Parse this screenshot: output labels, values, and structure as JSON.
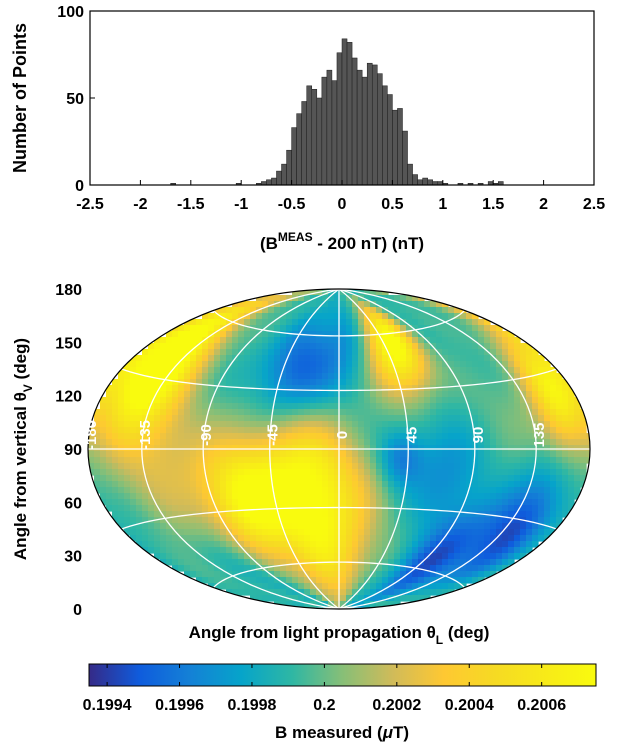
{
  "colors": {
    "bar_fill": "#555555",
    "bar_stroke": "#1a1a1a",
    "grid": "#ffffff",
    "parula_low": "#352a87",
    "parula_mid": "#2ca5c2",
    "parula_high": "#f9fb0e"
  },
  "chart_data": [
    {
      "type": "bar",
      "name": "histogram",
      "xlabel_base": "(B",
      "xlabel_sup": "MEAS",
      "xlabel_rest": " - 200 nT) (nT)",
      "ylabel": "Number of Points",
      "xlim": [
        -2.5,
        2.5
      ],
      "ylim": [
        0,
        100
      ],
      "xticks": [
        "-2.5",
        "-2",
        "-1.5",
        "-1",
        "-0.5",
        "0",
        "0.5",
        "1",
        "1.5",
        "2",
        "2.5"
      ],
      "yticks": [
        "0",
        "50",
        "100"
      ],
      "bin_width": 0.05,
      "bin_centers": [
        -1.675,
        -1.025,
        -0.825,
        -0.775,
        -0.725,
        -0.675,
        -0.625,
        -0.575,
        -0.525,
        -0.475,
        -0.425,
        -0.375,
        -0.325,
        -0.275,
        -0.225,
        -0.175,
        -0.125,
        -0.075,
        -0.025,
        0.025,
        0.075,
        0.125,
        0.175,
        0.225,
        0.275,
        0.325,
        0.375,
        0.425,
        0.475,
        0.525,
        0.575,
        0.625,
        0.675,
        0.725,
        0.775,
        0.825,
        0.875,
        0.925,
        0.975,
        1.025,
        1.175,
        1.275,
        1.375,
        1.475,
        1.525,
        1.575
      ],
      "counts": [
        1,
        1,
        1,
        2,
        3,
        4,
        8,
        12,
        20,
        33,
        41,
        48,
        57,
        55,
        50,
        62,
        66,
        60,
        76,
        84,
        82,
        73,
        66,
        62,
        70,
        69,
        64,
        57,
        52,
        43,
        44,
        31,
        12,
        6,
        3,
        4,
        3,
        2,
        2,
        1,
        1,
        1,
        1,
        2,
        1,
        2
      ]
    },
    {
      "type": "heatmap",
      "name": "hammer-map",
      "xlabel": "Angle from light propagation θ",
      "xlabel_sub": "L",
      "xlabel_unit": " (deg)",
      "ylabel": "Angle from vertical θ",
      "ylabel_sub": "V",
      "ylabel_unit": " (deg)",
      "x_range": [
        -180,
        180
      ],
      "y_range": [
        0,
        180
      ],
      "yticks": [
        "0",
        "30",
        "60",
        "90",
        "120",
        "150",
        "180"
      ],
      "meridian_labels": [
        "-180",
        "-135",
        "-90",
        "-45",
        "0",
        "45",
        "90",
        "135"
      ],
      "grid_parallels": [
        30,
        60,
        90,
        120,
        150
      ],
      "grid_meridians": [
        -135,
        -90,
        -45,
        0,
        45,
        90,
        135
      ],
      "blobs": [
        {
          "lon": -65,
          "lat": 115,
          "value": 0.2007,
          "sigma": 22
        },
        {
          "lon": -10,
          "lat": 140,
          "value": 0.20055,
          "sigma": 28
        },
        {
          "lon": -20,
          "lat": 100,
          "value": 0.20045,
          "sigma": 22
        },
        {
          "lon": -160,
          "lat": 45,
          "value": 0.2006,
          "sigma": 25
        },
        {
          "lon": -140,
          "lat": 60,
          "value": 0.20045,
          "sigma": 20
        },
        {
          "lon": 160,
          "lat": 70,
          "value": 0.20055,
          "sigma": 15
        },
        {
          "lon": 45,
          "lat": 45,
          "value": 0.2005,
          "sigma": 16
        },
        {
          "lon": 60,
          "lat": 30,
          "value": 0.20045,
          "sigma": 15
        },
        {
          "lon": -100,
          "lat": 150,
          "value": 0.1998,
          "sigma": 18
        },
        {
          "lon": -35,
          "lat": 50,
          "value": 0.19955,
          "sigma": 20
        },
        {
          "lon": 0,
          "lat": 40,
          "value": 0.1997,
          "sigma": 20
        },
        {
          "lon": 100,
          "lat": 145,
          "value": 0.19945,
          "sigma": 20
        },
        {
          "lon": 145,
          "lat": 125,
          "value": 0.19945,
          "sigma": 18
        },
        {
          "lon": 70,
          "lat": 100,
          "value": 0.1997,
          "sigma": 18
        },
        {
          "lon": 40,
          "lat": 95,
          "value": 0.1996,
          "sigma": 10
        },
        {
          "lon": -120,
          "lat": 100,
          "value": 0.20015,
          "sigma": 25
        },
        {
          "lon": 115,
          "lat": 75,
          "value": 0.2,
          "sigma": 20
        }
      ],
      "base_value": 0.1999
    },
    {
      "type": "colorbar",
      "name": "colorbar",
      "label": "B measured (",
      "label_mu": "μ",
      "label_end": "T)",
      "range": [
        0.19935,
        0.20075
      ],
      "ticks": [
        0.1994,
        0.1996,
        0.1998,
        0.2,
        0.2002,
        0.2004,
        0.2006
      ],
      "tick_labels": [
        "0.1994",
        "0.1996",
        "0.1998",
        "0.2",
        "0.2002",
        "0.2004",
        "0.2006"
      ]
    }
  ]
}
